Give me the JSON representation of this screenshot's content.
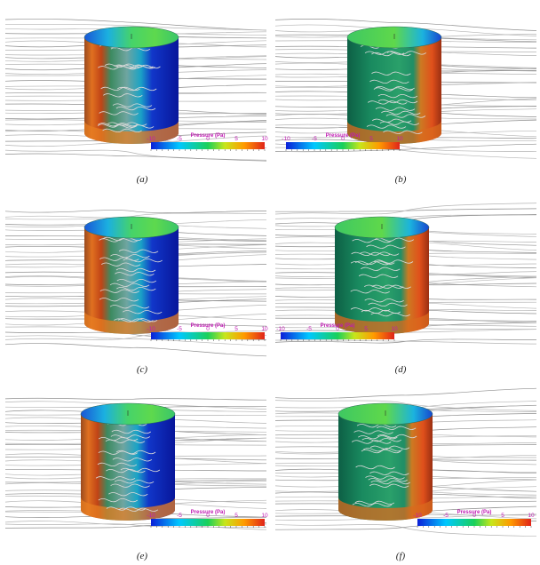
{
  "panels": [
    {
      "id": "a",
      "caption": "(a)",
      "orientation": "front",
      "colorbar": {
        "title": "Pressure (Pa)",
        "ticks": [
          "-10",
          "-5",
          "0",
          "5",
          "10"
        ]
      }
    },
    {
      "id": "b",
      "caption": "(b)",
      "orientation": "back",
      "colorbar": {
        "title": "Pressure (Pa)",
        "ticks": [
          "-10",
          "-5",
          "0",
          "5",
          "10"
        ]
      }
    },
    {
      "id": "c",
      "caption": "(c)",
      "orientation": "front",
      "colorbar": {
        "title": "Pressure (Pa)",
        "ticks": [
          "-10",
          "-5",
          "0",
          "5",
          "10"
        ]
      }
    },
    {
      "id": "d",
      "caption": "(d)",
      "orientation": "back",
      "colorbar": {
        "title": "Pressure (Pa)",
        "ticks": [
          "-10",
          "-5",
          "0",
          "5",
          "10"
        ]
      }
    },
    {
      "id": "e",
      "caption": "(e)",
      "orientation": "front",
      "colorbar": {
        "title": "Pressure (Pa)",
        "ticks": [
          "-10",
          "-5",
          "0",
          "5",
          "10"
        ]
      }
    },
    {
      "id": "f",
      "caption": "(f)",
      "orientation": "back",
      "colorbar": {
        "title": "Pressure (Pa)",
        "ticks": [
          "-10",
          "-5",
          "0",
          "5",
          "10"
        ]
      }
    }
  ],
  "colorbar_range": [
    -10,
    10
  ],
  "colors": {
    "text_accent": "#c01bb3",
    "streamline": "#a9a9a9",
    "colormap": [
      "#0b1fd8",
      "#00c8ff",
      "#19d05a",
      "#c7e61b",
      "#ff9a00",
      "#e0231a"
    ]
  }
}
